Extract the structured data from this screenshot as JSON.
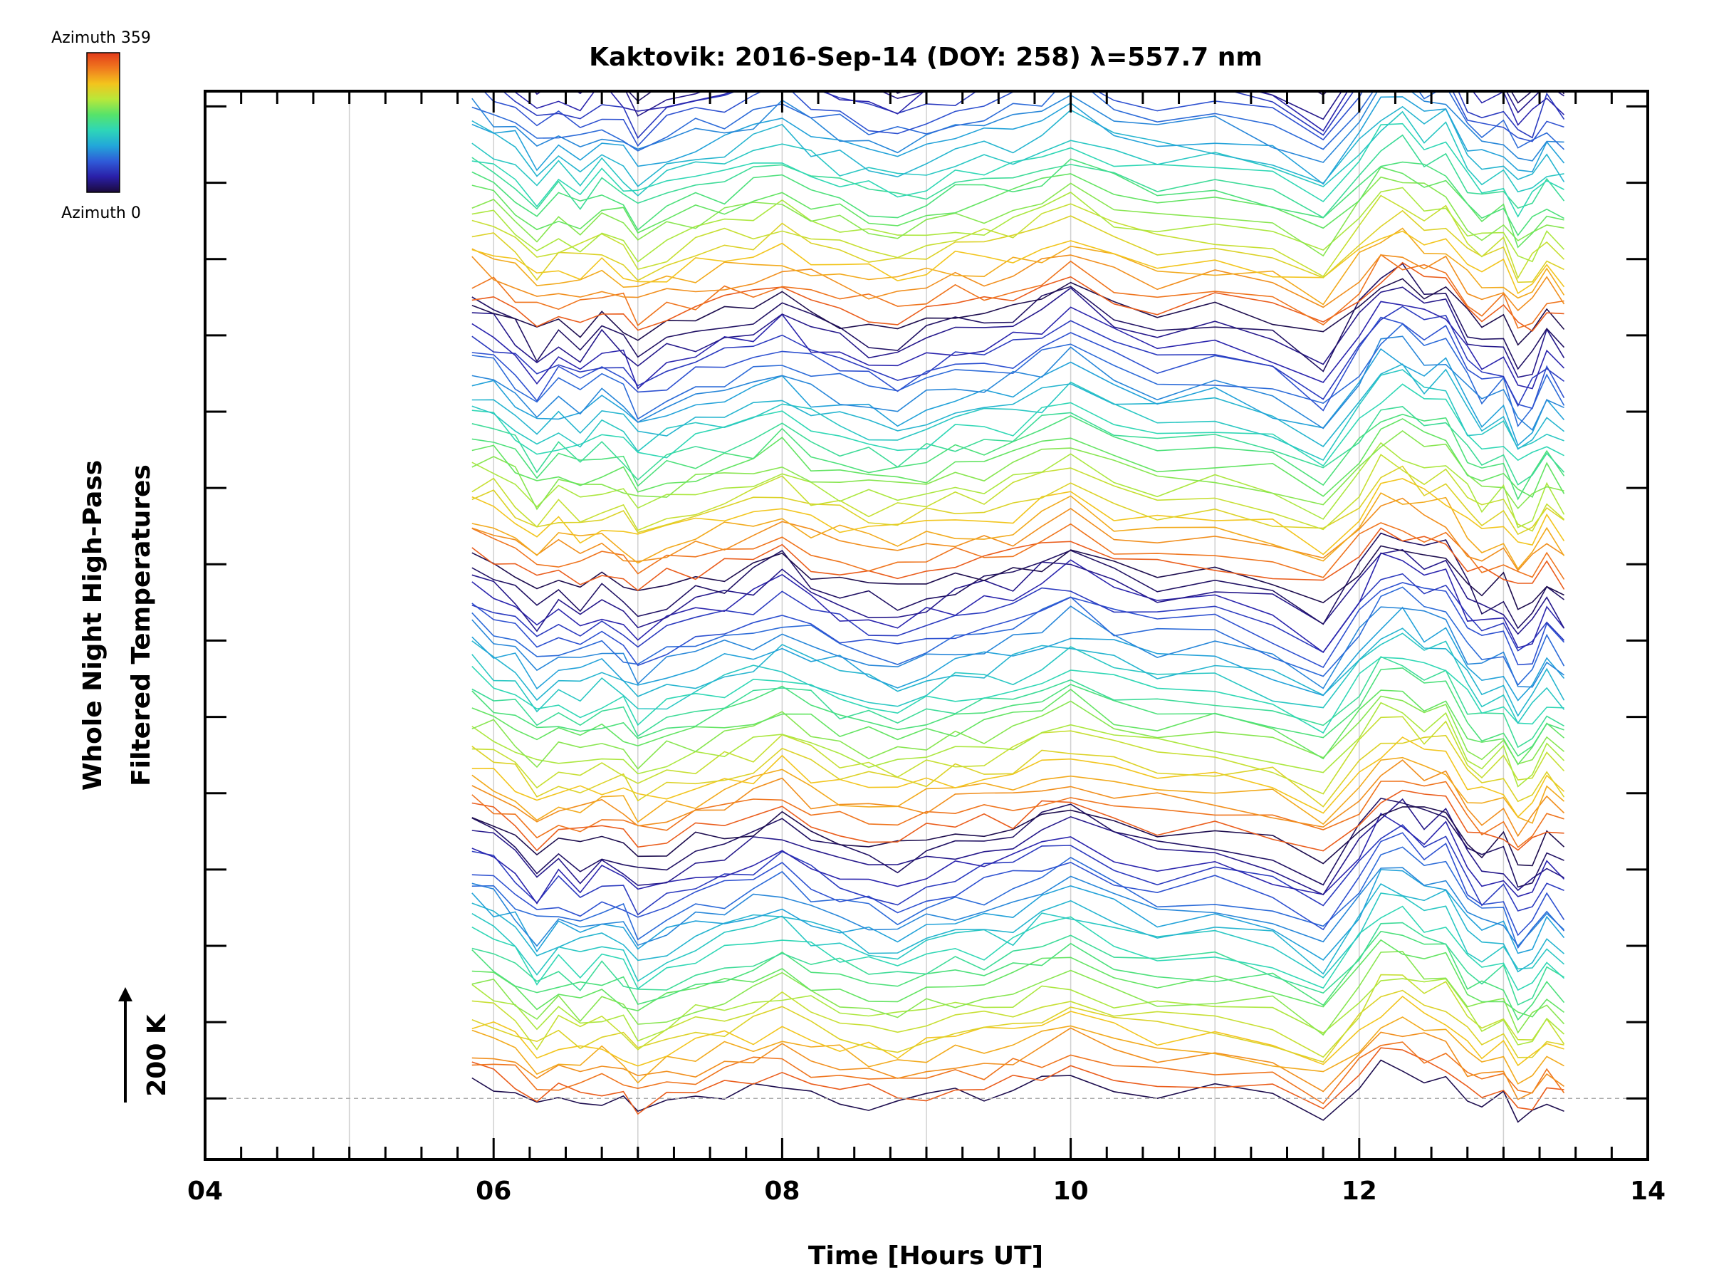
{
  "chart_data": {
    "type": "line",
    "title": "Kaktovik: 2016-Sep-14 (DOY: 258) λ=557.7 nm",
    "xlabel": "Time [Hours UT]",
    "ylabel_line1": "Whole Night High-Pass",
    "ylabel_line2": "Filtered Temperatures",
    "xlim": [
      4,
      14
    ],
    "xticks": [
      "04",
      "06",
      "08",
      "10",
      "12",
      "14"
    ],
    "xtick_values": [
      4,
      6,
      8,
      10,
      12,
      14
    ],
    "x_minor_step": 0.25,
    "x_gridlines": [
      5,
      6,
      7,
      8,
      9,
      10,
      11,
      12,
      13
    ],
    "ylim": [
      -80,
      1320
    ],
    "y_major_step": 100,
    "scale_bar_label": "200 K",
    "scale_bar_value": 200,
    "baseline_value": 0,
    "colorbar": {
      "top_label": "Azimuth 359",
      "bottom_label": "Azimuth 0",
      "colormap": "rainbow"
    },
    "colormap_stops": [
      "#1b0a3c",
      "#2a1fa8",
      "#2f5bd8",
      "#22a7d9",
      "#2ed6b8",
      "#56e36a",
      "#b8e83a",
      "#f3c41d",
      "#f07a1e",
      "#e23a1a"
    ],
    "series_description": "Stacked per-azimuth temperature traces (96 series), each offset by approximately 14 K; azimuth encoded by color",
    "x": [
      5.85,
      6.0,
      6.15,
      6.3,
      6.45,
      6.6,
      6.75,
      6.9,
      7.0,
      7.2,
      7.4,
      7.6,
      7.8,
      8.0,
      8.2,
      8.4,
      8.6,
      8.8,
      9.0,
      9.2,
      9.4,
      9.6,
      9.8,
      10.0,
      10.3,
      10.6,
      11.0,
      11.4,
      11.75,
      12.0,
      12.15,
      12.3,
      12.45,
      12.6,
      12.75,
      12.85,
      13.0,
      13.1,
      13.2,
      13.3,
      13.42
    ],
    "series_count": 96,
    "series_spacing": 14.2,
    "base_profile": [
      30,
      20,
      5,
      -25,
      -5,
      -15,
      0,
      -10,
      -30,
      -15,
      -5,
      5,
      15,
      30,
      10,
      0,
      -10,
      -15,
      -5,
      5,
      10,
      15,
      30,
      45,
      20,
      5,
      10,
      -5,
      -35,
      20,
      55,
      60,
      40,
      45,
      0,
      -15,
      -5,
      -40,
      -30,
      0,
      -20
    ]
  }
}
